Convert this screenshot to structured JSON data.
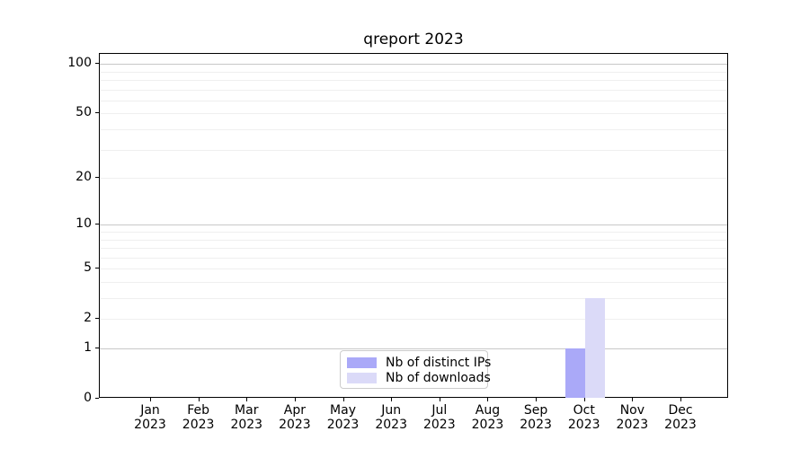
{
  "figure": {
    "background": "#ffffff",
    "axis_color": "#000000",
    "text_color": "#000000"
  },
  "chart_data": {
    "type": "bar",
    "title": "qreport 2023",
    "xlabel": "",
    "ylabel": "",
    "categories": [
      {
        "month": "Jan",
        "year": "2023"
      },
      {
        "month": "Feb",
        "year": "2023"
      },
      {
        "month": "Mar",
        "year": "2023"
      },
      {
        "month": "Apr",
        "year": "2023"
      },
      {
        "month": "May",
        "year": "2023"
      },
      {
        "month": "Jun",
        "year": "2023"
      },
      {
        "month": "Jul",
        "year": "2023"
      },
      {
        "month": "Aug",
        "year": "2023"
      },
      {
        "month": "Sep",
        "year": "2023"
      },
      {
        "month": "Oct",
        "year": "2023"
      },
      {
        "month": "Nov",
        "year": "2023"
      },
      {
        "month": "Dec",
        "year": "2023"
      }
    ],
    "series": [
      {
        "name": "Nb of distinct IPs",
        "color": "#aaa9f8",
        "values": [
          0,
          0,
          0,
          0,
          0,
          0,
          0,
          0,
          0,
          1,
          0,
          0
        ]
      },
      {
        "name": "Nb of downloads",
        "color": "#dbdaf8",
        "values": [
          0,
          0,
          0,
          0,
          0,
          0,
          0,
          0,
          0,
          3,
          0,
          0
        ]
      }
    ],
    "yscale": "log1p",
    "ylim": [
      0,
      115
    ],
    "yticks": [
      0,
      1,
      2,
      5,
      10,
      20,
      50,
      100
    ],
    "grid": {
      "major_values": [
        1,
        10,
        100
      ],
      "minor_values": [
        2,
        3,
        4,
        5,
        6,
        7,
        8,
        9,
        20,
        30,
        40,
        50,
        60,
        70,
        80,
        90
      ],
      "major_color": "#c8c8c8",
      "minor_color": "#efefef"
    },
    "legend": {
      "position": "lower center",
      "entries": [
        "Nb of distinct IPs",
        "Nb of downloads"
      ]
    }
  }
}
